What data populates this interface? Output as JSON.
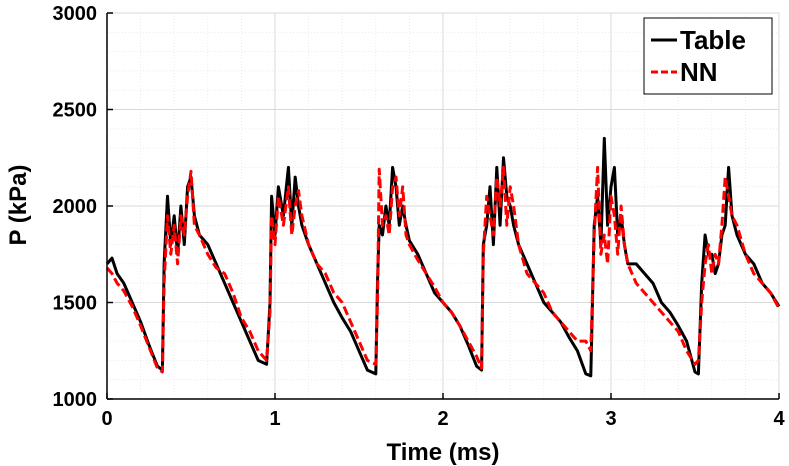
{
  "chart_data": {
    "type": "line",
    "title": "",
    "xlabel": "Time (ms)",
    "ylabel": "P (kPa)",
    "xlim": [
      0,
      4
    ],
    "ylim": [
      1000,
      3000
    ],
    "x_ticks": [
      0,
      1,
      2,
      3,
      4
    ],
    "y_ticks": [
      1000,
      1500,
      2000,
      2500,
      3000
    ],
    "grid": true,
    "legend_position": "top-right",
    "series": [
      {
        "name": "Table",
        "color": "#000000",
        "style": "solid",
        "x": [
          0,
          0.03,
          0.06,
          0.1,
          0.15,
          0.2,
          0.25,
          0.3,
          0.33,
          0.34,
          0.36,
          0.38,
          0.4,
          0.42,
          0.44,
          0.46,
          0.48,
          0.5,
          0.52,
          0.55,
          0.6,
          0.65,
          0.7,
          0.75,
          0.8,
          0.85,
          0.9,
          0.95,
          0.97,
          0.98,
          1.0,
          1.02,
          1.05,
          1.08,
          1.1,
          1.12,
          1.14,
          1.16,
          1.2,
          1.25,
          1.3,
          1.35,
          1.4,
          1.45,
          1.5,
          1.55,
          1.6,
          1.61,
          1.62,
          1.64,
          1.66,
          1.68,
          1.7,
          1.72,
          1.74,
          1.76,
          1.78,
          1.8,
          1.85,
          1.9,
          1.95,
          2.0,
          2.05,
          2.1,
          2.15,
          2.2,
          2.23,
          2.24,
          2.26,
          2.28,
          2.3,
          2.32,
          2.34,
          2.36,
          2.38,
          2.4,
          2.42,
          2.45,
          2.5,
          2.55,
          2.6,
          2.65,
          2.7,
          2.75,
          2.8,
          2.85,
          2.88,
          2.9,
          2.92,
          2.94,
          2.96,
          2.98,
          3.0,
          3.02,
          3.04,
          3.06,
          3.08,
          3.1,
          3.15,
          3.2,
          3.25,
          3.3,
          3.35,
          3.4,
          3.45,
          3.5,
          3.52,
          3.54,
          3.56,
          3.58,
          3.6,
          3.62,
          3.64,
          3.66,
          3.68,
          3.7,
          3.72,
          3.75,
          3.8,
          3.85,
          3.9,
          3.95,
          4.0
        ],
        "y": [
          1700,
          1730,
          1650,
          1600,
          1500,
          1400,
          1280,
          1170,
          1150,
          1700,
          2050,
          1800,
          1950,
          1750,
          2000,
          1800,
          2100,
          2150,
          1950,
          1850,
          1800,
          1700,
          1600,
          1500,
          1400,
          1300,
          1200,
          1180,
          1500,
          2050,
          1850,
          2100,
          1950,
          2200,
          1900,
          2150,
          2000,
          1900,
          1800,
          1700,
          1600,
          1500,
          1420,
          1350,
          1250,
          1150,
          1130,
          1600,
          1900,
          1850,
          2000,
          1900,
          2200,
          2100,
          1900,
          2000,
          1900,
          1820,
          1750,
          1650,
          1550,
          1500,
          1450,
          1380,
          1280,
          1170,
          1150,
          1800,
          1900,
          2100,
          1800,
          2200,
          1900,
          2250,
          2050,
          2000,
          1900,
          1800,
          1700,
          1600,
          1500,
          1450,
          1400,
          1320,
          1250,
          1130,
          1120,
          1900,
          2050,
          1800,
          2350,
          1900,
          2100,
          2200,
          1850,
          1950,
          1800,
          1700,
          1700,
          1650,
          1600,
          1500,
          1450,
          1380,
          1300,
          1140,
          1130,
          1600,
          1850,
          1750,
          1750,
          1650,
          1700,
          1850,
          1900,
          2200,
          1950,
          1850,
          1750,
          1700,
          1600,
          1550,
          1480
        ]
      },
      {
        "name": "NN",
        "color": "#ff0000",
        "style": "dashed",
        "x": [
          0,
          0.03,
          0.06,
          0.1,
          0.15,
          0.2,
          0.25,
          0.3,
          0.33,
          0.34,
          0.36,
          0.38,
          0.4,
          0.42,
          0.44,
          0.46,
          0.48,
          0.5,
          0.52,
          0.55,
          0.6,
          0.65,
          0.7,
          0.75,
          0.8,
          0.85,
          0.9,
          0.95,
          0.97,
          0.98,
          1.0,
          1.02,
          1.05,
          1.08,
          1.1,
          1.12,
          1.14,
          1.16,
          1.2,
          1.25,
          1.3,
          1.35,
          1.4,
          1.45,
          1.5,
          1.55,
          1.6,
          1.61,
          1.62,
          1.64,
          1.66,
          1.68,
          1.7,
          1.72,
          1.74,
          1.76,
          1.78,
          1.8,
          1.85,
          1.9,
          1.95,
          2.0,
          2.05,
          2.1,
          2.15,
          2.2,
          2.23,
          2.24,
          2.26,
          2.28,
          2.3,
          2.32,
          2.34,
          2.36,
          2.38,
          2.4,
          2.42,
          2.45,
          2.5,
          2.55,
          2.6,
          2.65,
          2.7,
          2.75,
          2.8,
          2.85,
          2.88,
          2.9,
          2.92,
          2.94,
          2.96,
          2.98,
          3.0,
          3.02,
          3.04,
          3.06,
          3.08,
          3.1,
          3.15,
          3.2,
          3.25,
          3.3,
          3.35,
          3.4,
          3.45,
          3.5,
          3.52,
          3.54,
          3.56,
          3.58,
          3.6,
          3.62,
          3.64,
          3.66,
          3.68,
          3.7,
          3.72,
          3.75,
          3.8,
          3.85,
          3.9,
          3.95,
          4.0
        ],
        "y": [
          1680,
          1650,
          1600,
          1560,
          1480,
          1380,
          1270,
          1160,
          1140,
          1600,
          1950,
          1750,
          1900,
          1700,
          1950,
          1850,
          2050,
          2180,
          1900,
          1850,
          1750,
          1680,
          1650,
          1550,
          1420,
          1350,
          1250,
          1200,
          1450,
          1950,
          1800,
          2050,
          1900,
          2100,
          1850,
          2000,
          2080,
          1950,
          1800,
          1700,
          1650,
          1550,
          1500,
          1400,
          1300,
          1200,
          1180,
          1500,
          2190,
          1900,
          1950,
          1850,
          2100,
          2150,
          1950,
          2100,
          1850,
          1800,
          1720,
          1650,
          1580,
          1500,
          1450,
          1380,
          1300,
          1220,
          1160,
          1750,
          2050,
          1950,
          1850,
          2150,
          2000,
          2200,
          1900,
          2100,
          2000,
          1800,
          1650,
          1600,
          1550,
          1450,
          1400,
          1350,
          1300,
          1300,
          1250,
          1850,
          2200,
          1750,
          1850,
          1700,
          2050,
          1950,
          1750,
          2000,
          1800,
          1700,
          1600,
          1550,
          1500,
          1450,
          1400,
          1350,
          1250,
          1180,
          1200,
          1500,
          1700,
          1800,
          1650,
          1750,
          1700,
          1900,
          2150,
          2050,
          1950,
          1900,
          1750,
          1650,
          1600,
          1550,
          1470
        ]
      }
    ]
  }
}
